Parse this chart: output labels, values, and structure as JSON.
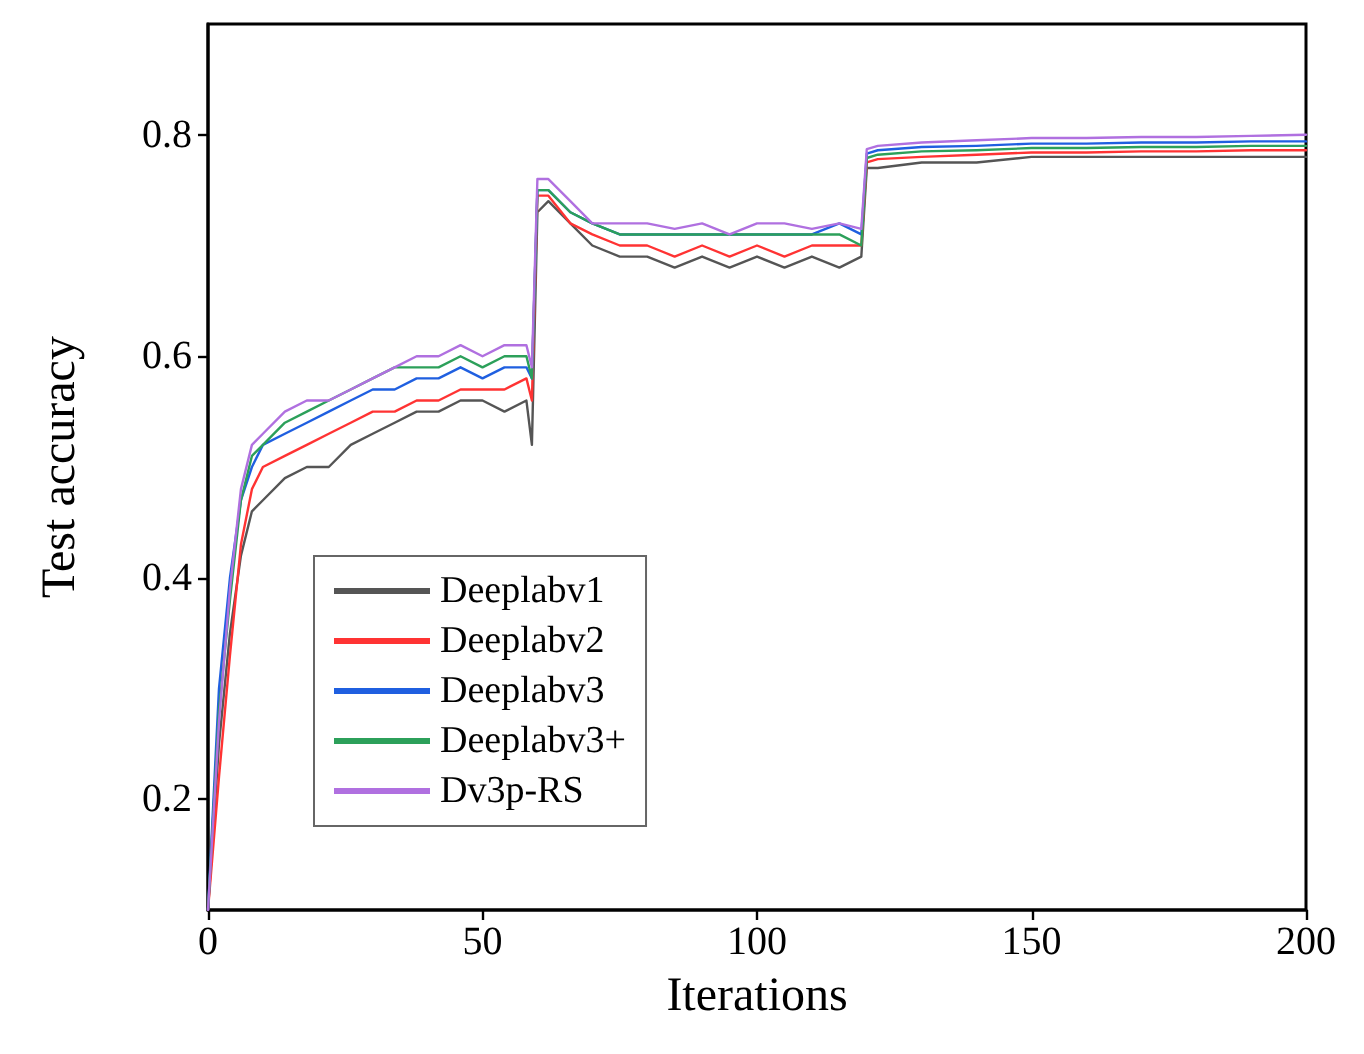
{
  "chart_data": {
    "type": "line",
    "xlabel": "Iterations",
    "ylabel": "Test accuracy",
    "xlim": [
      0,
      200
    ],
    "xticks": [
      0,
      50,
      100,
      150,
      200
    ],
    "ylim": [
      0.1,
      0.9
    ],
    "yticks": [
      0.2,
      0.4,
      0.6,
      0.8
    ],
    "grid": false,
    "legend": "bottom left",
    "marker": "none",
    "line_style": "solid",
    "x": [
      0,
      2,
      4,
      6,
      8,
      10,
      14,
      18,
      22,
      26,
      30,
      34,
      38,
      42,
      46,
      50,
      54,
      58,
      59,
      60,
      62,
      66,
      70,
      75,
      80,
      85,
      90,
      95,
      100,
      105,
      110,
      115,
      119,
      120,
      122,
      130,
      140,
      150,
      160,
      170,
      180,
      190,
      200
    ],
    "series": [
      {
        "name": "Deeplabv1",
        "color": "#555555",
        "values": [
          0.1,
          0.25,
          0.35,
          0.42,
          0.46,
          0.47,
          0.49,
          0.5,
          0.5,
          0.52,
          0.53,
          0.54,
          0.55,
          0.55,
          0.56,
          0.56,
          0.55,
          0.56,
          0.52,
          0.73,
          0.74,
          0.72,
          0.7,
          0.69,
          0.69,
          0.68,
          0.69,
          0.68,
          0.69,
          0.68,
          0.69,
          0.68,
          0.69,
          0.77,
          0.77,
          0.775,
          0.775,
          0.78,
          0.78,
          0.78,
          0.78,
          0.78,
          0.78
        ]
      },
      {
        "name": "Deeplabv2",
        "color": "#ff3333",
        "values": [
          0.1,
          0.22,
          0.33,
          0.43,
          0.48,
          0.5,
          0.51,
          0.52,
          0.53,
          0.54,
          0.55,
          0.55,
          0.56,
          0.56,
          0.57,
          0.57,
          0.57,
          0.58,
          0.56,
          0.745,
          0.745,
          0.72,
          0.71,
          0.7,
          0.7,
          0.69,
          0.7,
          0.69,
          0.7,
          0.69,
          0.7,
          0.7,
          0.7,
          0.775,
          0.778,
          0.78,
          0.782,
          0.784,
          0.784,
          0.785,
          0.785,
          0.786,
          0.786
        ]
      },
      {
        "name": "Deeplabv3",
        "color": "#1f5fe0",
        "values": [
          0.1,
          0.3,
          0.4,
          0.47,
          0.5,
          0.52,
          0.53,
          0.54,
          0.55,
          0.56,
          0.57,
          0.57,
          0.58,
          0.58,
          0.59,
          0.58,
          0.59,
          0.59,
          0.58,
          0.75,
          0.75,
          0.73,
          0.72,
          0.71,
          0.71,
          0.71,
          0.71,
          0.71,
          0.71,
          0.71,
          0.71,
          0.72,
          0.71,
          0.783,
          0.786,
          0.789,
          0.79,
          0.792,
          0.792,
          0.793,
          0.793,
          0.794,
          0.794
        ]
      },
      {
        "name": "Deeplabv3+",
        "color": "#2ca05a",
        "values": [
          0.1,
          0.28,
          0.38,
          0.47,
          0.51,
          0.52,
          0.54,
          0.55,
          0.56,
          0.57,
          0.58,
          0.59,
          0.59,
          0.59,
          0.6,
          0.59,
          0.6,
          0.6,
          0.58,
          0.75,
          0.75,
          0.73,
          0.72,
          0.71,
          0.71,
          0.71,
          0.71,
          0.71,
          0.71,
          0.71,
          0.71,
          0.71,
          0.7,
          0.779,
          0.782,
          0.785,
          0.786,
          0.788,
          0.788,
          0.789,
          0.789,
          0.79,
          0.79
        ]
      },
      {
        "name": "Dv3p-RS",
        "color": "#b070e0",
        "values": [
          0.1,
          0.27,
          0.39,
          0.48,
          0.52,
          0.53,
          0.55,
          0.56,
          0.56,
          0.57,
          0.58,
          0.59,
          0.6,
          0.6,
          0.61,
          0.6,
          0.61,
          0.61,
          0.59,
          0.76,
          0.76,
          0.74,
          0.72,
          0.72,
          0.72,
          0.715,
          0.72,
          0.71,
          0.72,
          0.72,
          0.715,
          0.72,
          0.715,
          0.787,
          0.79,
          0.793,
          0.795,
          0.797,
          0.797,
          0.798,
          0.798,
          0.799,
          0.8
        ]
      }
    ]
  }
}
